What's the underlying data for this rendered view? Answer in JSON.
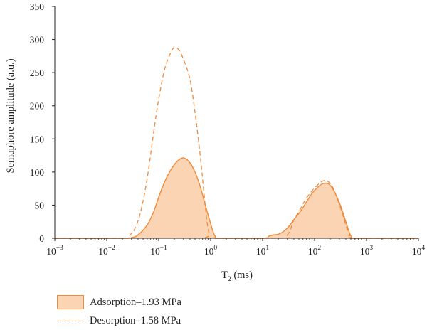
{
  "chart_data": {
    "type": "area",
    "x_scale": "log",
    "xlim": [
      0.001,
      10000
    ],
    "ylim": [
      0,
      350
    ],
    "xlabel_main": "T",
    "xlabel_sub": "2",
    "xlabel_unit": " (ms)",
    "ylabel": "Semaphore amplitude (a.u.)",
    "x_ticks": [
      {
        "value": 0.001,
        "base": "10",
        "exp": "−3"
      },
      {
        "value": 0.01,
        "base": "10",
        "exp": "−2"
      },
      {
        "value": 0.1,
        "base": "10",
        "exp": "−1"
      },
      {
        "value": 1,
        "base": "10",
        "exp": "0"
      },
      {
        "value": 10,
        "base": "10",
        "exp": "1"
      },
      {
        "value": 100,
        "base": "10",
        "exp": "2"
      },
      {
        "value": 1000,
        "base": "10",
        "exp": "3"
      },
      {
        "value": 10000,
        "base": "10",
        "exp": "4"
      }
    ],
    "y_ticks": [
      0,
      50,
      100,
      150,
      200,
      250,
      300,
      350
    ],
    "grid": false,
    "legend_position": "bottom-left",
    "series": [
      {
        "name": "Adsorption–1.93 MPa",
        "style": "filled",
        "color": "#f08a3c",
        "fill": "#fbd4b4",
        "points": [
          [
            0.001,
            0
          ],
          [
            0.02,
            0
          ],
          [
            0.03,
            1
          ],
          [
            0.04,
            5
          ],
          [
            0.06,
            20
          ],
          [
            0.08,
            40
          ],
          [
            0.1,
            62
          ],
          [
            0.13,
            85
          ],
          [
            0.17,
            103
          ],
          [
            0.22,
            115
          ],
          [
            0.28,
            121
          ],
          [
            0.33,
            120
          ],
          [
            0.4,
            114
          ],
          [
            0.5,
            100
          ],
          [
            0.63,
            78
          ],
          [
            0.79,
            50
          ],
          [
            1.0,
            22
          ],
          [
            1.15,
            7
          ],
          [
            1.26,
            2
          ],
          [
            1.4,
            0
          ],
          [
            10,
            0
          ],
          [
            13,
            3
          ],
          [
            16,
            5
          ],
          [
            20,
            6
          ],
          [
            25,
            10
          ],
          [
            32,
            18
          ],
          [
            40,
            28
          ],
          [
            55,
            42
          ],
          [
            70,
            55
          ],
          [
            90,
            68
          ],
          [
            115,
            77
          ],
          [
            140,
            82
          ],
          [
            170,
            83
          ],
          [
            200,
            80
          ],
          [
            250,
            68
          ],
          [
            320,
            48
          ],
          [
            400,
            25
          ],
          [
            470,
            8
          ],
          [
            520,
            2
          ],
          [
            560,
            0
          ],
          [
            10000,
            0
          ]
        ]
      },
      {
        "name": "Desorption–1.58 MPa",
        "style": "dashed",
        "color": "#f08a3c",
        "points": [
          [
            0.001,
            0
          ],
          [
            0.022,
            0
          ],
          [
            0.028,
            5
          ],
          [
            0.035,
            15
          ],
          [
            0.045,
            40
          ],
          [
            0.06,
            90
          ],
          [
            0.08,
            160
          ],
          [
            0.1,
            210
          ],
          [
            0.13,
            255
          ],
          [
            0.17,
            280
          ],
          [
            0.2,
            288
          ],
          [
            0.24,
            285
          ],
          [
            0.3,
            270
          ],
          [
            0.4,
            240
          ],
          [
            0.5,
            190
          ],
          [
            0.63,
            125
          ],
          [
            0.75,
            65
          ],
          [
            0.85,
            25
          ],
          [
            0.95,
            5
          ],
          [
            1.0,
            0
          ],
          [
            25,
            0
          ],
          [
            30,
            5
          ],
          [
            35,
            15
          ],
          [
            40,
            28
          ],
          [
            50,
            40
          ],
          [
            63,
            55
          ],
          [
            80,
            67
          ],
          [
            100,
            76
          ],
          [
            125,
            83
          ],
          [
            150,
            87
          ],
          [
            180,
            86
          ],
          [
            220,
            78
          ],
          [
            280,
            58
          ],
          [
            350,
            35
          ],
          [
            420,
            15
          ],
          [
            480,
            5
          ],
          [
            520,
            0
          ],
          [
            10000,
            0
          ]
        ]
      }
    ]
  }
}
